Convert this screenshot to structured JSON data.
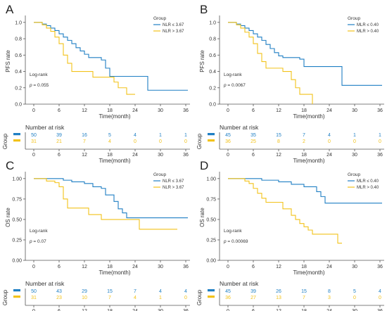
{
  "colors": {
    "blue": "#1f7fc4",
    "yellow": "#f2c21a",
    "axis": "#555555",
    "text": "#333333"
  },
  "chart_data": [
    {
      "type": "line",
      "panel_letter": "A",
      "ylabel": "PFS rate",
      "xlabel": "Time(month)",
      "xlim": [
        -2,
        37
      ],
      "ylim": [
        0,
        1.05
      ],
      "x_ticks": [
        0,
        6,
        12,
        18,
        24,
        30,
        36
      ],
      "y_ticks": [
        0.0,
        0.2,
        0.4,
        0.6,
        0.8,
        1.0
      ],
      "y_tick_labels": [
        "0.0",
        "0.2",
        "0.4",
        "0.6",
        "0.8",
        "1.0"
      ],
      "legend_title": "Group",
      "legend_position": "top-right",
      "annotation": {
        "line1": "Log-rank",
        "p_label": "p",
        "p_rest": " = 0.055"
      },
      "series": [
        {
          "name": "NLR ≤ 3.67",
          "color": "#1f7fc4",
          "steps": [
            [
              0,
              1.0
            ],
            [
              2,
              0.98
            ],
            [
              3,
              0.96
            ],
            [
              4,
              0.93
            ],
            [
              5,
              0.9
            ],
            [
              6,
              0.86
            ],
            [
              7,
              0.82
            ],
            [
              8,
              0.78
            ],
            [
              9,
              0.74
            ],
            [
              10,
              0.69
            ],
            [
              11,
              0.65
            ],
            [
              12,
              0.61
            ],
            [
              13,
              0.57
            ],
            [
              16,
              0.54
            ],
            [
              17,
              0.44
            ],
            [
              18,
              0.34
            ],
            [
              27,
              0.34
            ],
            [
              27,
              0.17
            ],
            [
              36.5,
              0.17
            ]
          ]
        },
        {
          "name": "NLR > 3.67",
          "color": "#f2c21a",
          "steps": [
            [
              0,
              1.0
            ],
            [
              2,
              0.97
            ],
            [
              3,
              0.93
            ],
            [
              4,
              0.89
            ],
            [
              5,
              0.82
            ],
            [
              6,
              0.74
            ],
            [
              7,
              0.6
            ],
            [
              8,
              0.5
            ],
            [
              9,
              0.4
            ],
            [
              13,
              0.4
            ],
            [
              14,
              0.33
            ],
            [
              18,
              0.33
            ],
            [
              19,
              0.27
            ],
            [
              20,
              0.2
            ],
            [
              22,
              0.12
            ],
            [
              24,
              0.12
            ]
          ]
        }
      ],
      "risk_table": {
        "title": "Number at risk",
        "ylabel": "Group",
        "x": [
          0,
          6,
          12,
          18,
          24,
          30,
          36
        ],
        "rows": [
          {
            "color": "#1f7fc4",
            "values": [
              "50",
              "39",
              "16",
              "5",
              "4",
              "1",
              "1"
            ]
          },
          {
            "color": "#f2c21a",
            "values": [
              "31",
              "21",
              "7",
              "4",
              "0",
              "0",
              "0"
            ]
          }
        ]
      }
    },
    {
      "type": "line",
      "panel_letter": "B",
      "ylabel": "PFS rate",
      "xlabel": "Time(month)",
      "xlim": [
        -2,
        37
      ],
      "ylim": [
        0,
        1.05
      ],
      "x_ticks": [
        0,
        6,
        12,
        18,
        24,
        30,
        36
      ],
      "y_ticks": [
        0.0,
        0.2,
        0.4,
        0.6,
        0.8,
        1.0
      ],
      "y_tick_labels": [
        "0.0",
        "0.2",
        "0.4",
        "0.6",
        "0.8",
        "1.0"
      ],
      "legend_title": "Group",
      "legend_position": "top-right",
      "annotation": {
        "line1": "Log-rank",
        "p_label": "p",
        "p_rest": " = 0.0067"
      },
      "series": [
        {
          "name": "MLR ≤ 0.40",
          "color": "#1f7fc4",
          "steps": [
            [
              0,
              1.0
            ],
            [
              2,
              0.98
            ],
            [
              3,
              0.96
            ],
            [
              4,
              0.93
            ],
            [
              5,
              0.9
            ],
            [
              6,
              0.86
            ],
            [
              7,
              0.82
            ],
            [
              8,
              0.78
            ],
            [
              9,
              0.73
            ],
            [
              10,
              0.68
            ],
            [
              11,
              0.63
            ],
            [
              12,
              0.59
            ],
            [
              13,
              0.57
            ],
            [
              17,
              0.55
            ],
            [
              18,
              0.46
            ],
            [
              27,
              0.46
            ],
            [
              27,
              0.23
            ],
            [
              36.5,
              0.23
            ]
          ]
        },
        {
          "name": "MLR > 0.40",
          "color": "#f2c21a",
          "steps": [
            [
              0,
              1.0
            ],
            [
              2,
              0.97
            ],
            [
              3,
              0.93
            ],
            [
              4,
              0.88
            ],
            [
              5,
              0.82
            ],
            [
              6,
              0.74
            ],
            [
              7,
              0.62
            ],
            [
              8,
              0.52
            ],
            [
              9,
              0.44
            ],
            [
              13,
              0.4
            ],
            [
              15,
              0.3
            ],
            [
              16,
              0.2
            ],
            [
              17,
              0.12
            ],
            [
              20,
              0.12
            ],
            [
              20,
              0.0
            ]
          ]
        }
      ],
      "risk_table": {
        "title": "Number at risk",
        "ylabel": "Group",
        "x": [
          0,
          6,
          12,
          18,
          24,
          30,
          36
        ],
        "rows": [
          {
            "color": "#1f7fc4",
            "values": [
              "45",
              "35",
              "15",
              "7",
              "4",
              "1",
              "1"
            ]
          },
          {
            "color": "#f2c21a",
            "values": [
              "36",
              "25",
              "8",
              "2",
              "0",
              "0",
              "0"
            ]
          }
        ]
      }
    },
    {
      "type": "line",
      "panel_letter": "C",
      "ylabel": "OS rate",
      "xlabel": "Time(month)",
      "xlim": [
        -2,
        37
      ],
      "ylim": [
        0,
        1.05
      ],
      "x_ticks": [
        0,
        6,
        12,
        18,
        24,
        30,
        36
      ],
      "y_ticks": [
        0.0,
        0.25,
        0.5,
        0.75,
        1.0
      ],
      "y_tick_labels": [
        "0.00",
        "0.25",
        "0.50",
        "0.75",
        "1.00"
      ],
      "legend_title": "Group",
      "legend_position": "top-right",
      "annotation": {
        "line1": "Log-rank",
        "p_label": "p",
        "p_rest": " = 0.07"
      },
      "series": [
        {
          "name": "NLR ≤ 3.67",
          "color": "#1f7fc4",
          "steps": [
            [
              0,
              1.0
            ],
            [
              6,
              1.0
            ],
            [
              7,
              0.98
            ],
            [
              9,
              0.96
            ],
            [
              12,
              0.94
            ],
            [
              14,
              0.9
            ],
            [
              16,
              0.88
            ],
            [
              17,
              0.8
            ],
            [
              19,
              0.72
            ],
            [
              20,
              0.63
            ],
            [
              21,
              0.58
            ],
            [
              22,
              0.52
            ],
            [
              36.5,
              0.52
            ]
          ]
        },
        {
          "name": "NLR > 3.67",
          "color": "#f2c21a",
          "steps": [
            [
              0,
              1.0
            ],
            [
              3,
              0.97
            ],
            [
              5,
              0.95
            ],
            [
              6,
              0.9
            ],
            [
              7,
              0.75
            ],
            [
              8,
              0.64
            ],
            [
              12,
              0.64
            ],
            [
              13,
              0.56
            ],
            [
              16,
              0.5
            ],
            [
              24,
              0.5
            ],
            [
              25,
              0.38
            ],
            [
              34,
              0.38
            ]
          ]
        }
      ],
      "risk_table": {
        "title": "Number at risk",
        "ylabel": "Group",
        "x": [
          0,
          6,
          12,
          18,
          24,
          30,
          36
        ],
        "rows": [
          {
            "color": "#1f7fc4",
            "values": [
              "50",
              "43",
              "29",
              "15",
              "7",
              "4",
              "4"
            ]
          },
          {
            "color": "#f2c21a",
            "values": [
              "31",
              "23",
              "10",
              "7",
              "4",
              "1",
              "0"
            ]
          }
        ]
      }
    },
    {
      "type": "line",
      "panel_letter": "D",
      "ylabel": "OS rate",
      "xlabel": "Time(month)",
      "xlim": [
        -2,
        37
      ],
      "ylim": [
        0,
        1.05
      ],
      "x_ticks": [
        0,
        6,
        12,
        18,
        24,
        30,
        36
      ],
      "y_ticks": [
        0.0,
        0.25,
        0.5,
        0.75,
        1.0
      ],
      "y_tick_labels": [
        "0.00",
        "0.25",
        "0.50",
        "0.75",
        "1.00"
      ],
      "legend_title": "Group",
      "legend_position": "top-right",
      "annotation": {
        "line1": "Log-rank",
        "p_label": "p",
        "p_rest": " = 0.00069"
      },
      "series": [
        {
          "name": "MLR ≤ 0.40",
          "color": "#1f7fc4",
          "steps": [
            [
              0,
              1.0
            ],
            [
              7,
              1.0
            ],
            [
              8,
              0.98
            ],
            [
              12,
              0.96
            ],
            [
              15,
              0.93
            ],
            [
              18,
              0.9
            ],
            [
              21,
              0.84
            ],
            [
              22,
              0.78
            ],
            [
              23,
              0.7
            ],
            [
              36.5,
              0.7
            ]
          ]
        },
        {
          "name": "MLR > 0.40",
          "color": "#f2c21a",
          "steps": [
            [
              0,
              1.0
            ],
            [
              4,
              0.97
            ],
            [
              5,
              0.94
            ],
            [
              6,
              0.88
            ],
            [
              7,
              0.82
            ],
            [
              8,
              0.76
            ],
            [
              9,
              0.71
            ],
            [
              12,
              0.71
            ],
            [
              13,
              0.63
            ],
            [
              15,
              0.55
            ],
            [
              16,
              0.5
            ],
            [
              17,
              0.45
            ],
            [
              18,
              0.41
            ],
            [
              19,
              0.37
            ],
            [
              20,
              0.32
            ],
            [
              24,
              0.32
            ],
            [
              26,
              0.21
            ],
            [
              27,
              0.21
            ]
          ]
        }
      ],
      "risk_table": {
        "title": "Number at risk",
        "ylabel": "Group",
        "x": [
          0,
          6,
          12,
          18,
          24,
          30,
          36
        ],
        "rows": [
          {
            "color": "#1f7fc4",
            "values": [
              "45",
              "39",
              "26",
              "15",
              "8",
              "5",
              "4"
            ]
          },
          {
            "color": "#f2c21a",
            "values": [
              "36",
              "27",
              "13",
              "7",
              "3",
              "0",
              "0"
            ]
          }
        ]
      }
    }
  ]
}
